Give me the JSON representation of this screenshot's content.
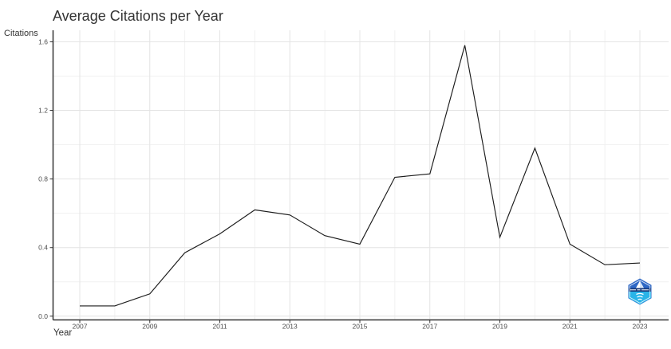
{
  "page": {
    "background": "#ffffff"
  },
  "chart_data": {
    "type": "line",
    "title": "Average Citations per Year",
    "xlabel": "Year",
    "ylabel": "Citations",
    "x": [
      2007,
      2008,
      2009,
      2010,
      2011,
      2012,
      2013,
      2014,
      2015,
      2016,
      2017,
      2018,
      2019,
      2020,
      2021,
      2022,
      2023
    ],
    "values": [
      0.06,
      0.06,
      0.13,
      0.37,
      0.48,
      0.62,
      0.59,
      0.47,
      0.42,
      0.81,
      0.83,
      1.58,
      0.46,
      0.98,
      0.42,
      0.3,
      0.31
    ],
    "x_ticks": [
      2007,
      2009,
      2011,
      2013,
      2015,
      2017,
      2019,
      2021,
      2023
    ],
    "x_tick_labels": [
      "2007",
      "2009",
      "2011",
      "2013",
      "2015",
      "2017",
      "2019",
      "2021",
      "2023"
    ],
    "y_ticks": [
      0.0,
      0.4,
      0.8,
      1.2,
      1.6
    ],
    "y_tick_labels": [
      "0.0",
      "0.4",
      "0.8",
      "1.2",
      "1.6"
    ],
    "ylim": [
      0,
      1.6
    ],
    "grid": "major and minor gridlines, light gray on white",
    "legend_position": "none",
    "colors": {
      "line": "#1c1c1c",
      "axis": "#333333",
      "grid_major": "#e4e4e4",
      "grid_minor": "#f1f1f1",
      "tick_text": "#4d4d4d",
      "title_text": "#333333"
    }
  },
  "logo": {
    "name": "hexagon-shield-badge",
    "colors": {
      "top": "#2e68c6",
      "bottom": "#29b4e8",
      "band": "#16397b",
      "detail": "#ffffff"
    }
  }
}
